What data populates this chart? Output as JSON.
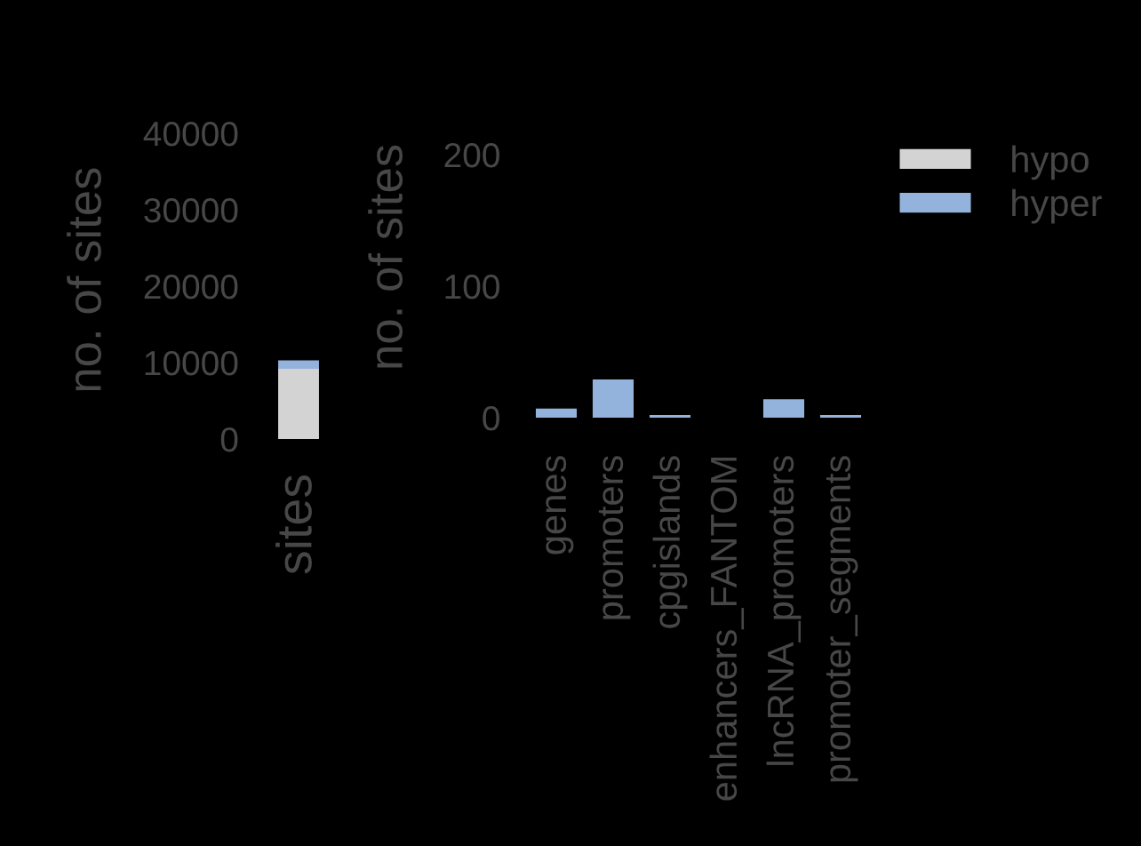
{
  "chart_data": [
    {
      "type": "bar",
      "stacked": true,
      "ylabel": "no. of sites",
      "categories": [
        "sites"
      ],
      "series": [
        {
          "name": "hypo",
          "color": "#d3d3d3",
          "values": [
            9200
          ]
        },
        {
          "name": "hyper",
          "color": "#94b3dc",
          "values": [
            1100
          ]
        }
      ],
      "ylim": [
        0,
        40000
      ],
      "yticks": [
        0,
        10000,
        20000,
        30000,
        40000
      ],
      "legend": "top right"
    },
    {
      "type": "bar",
      "ylabel": "no. of sites",
      "categories": [
        "genes",
        "promoters",
        "cpgislands",
        "enhancers_FANTOM",
        "lncRNA_promoters",
        "promoter_segments"
      ],
      "series": [
        {
          "color": "#94b3dc",
          "values": [
            7,
            29,
            2,
            null,
            14,
            2
          ]
        }
      ],
      "ylim": [
        0,
        200
      ],
      "yticks": [
        0,
        100,
        200
      ]
    }
  ]
}
